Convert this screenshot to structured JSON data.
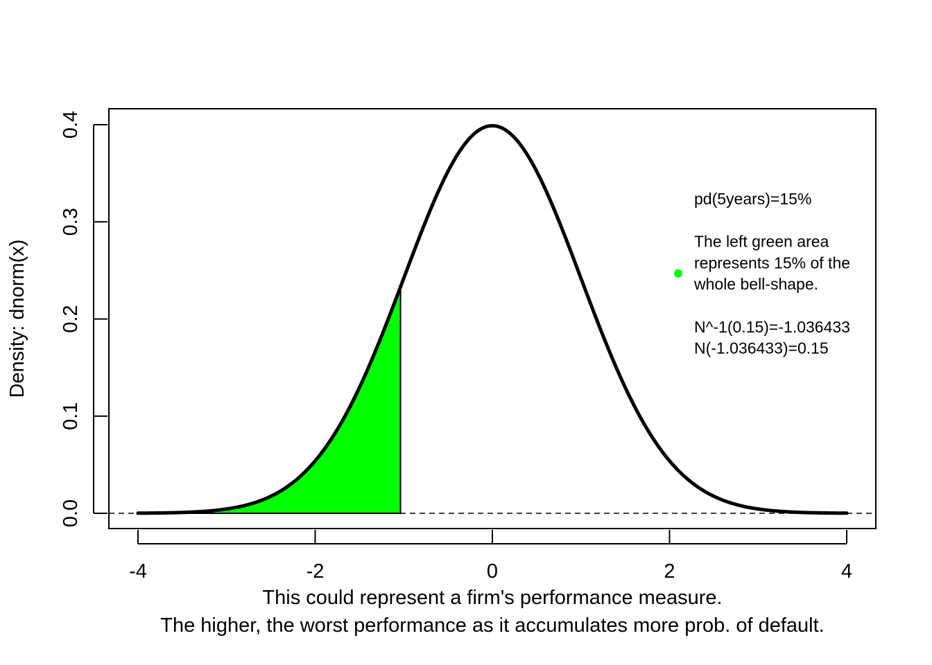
{
  "chart_data": {
    "type": "area",
    "title": "",
    "xlabel": [
      "This could represent a firm's performance measure.",
      "The higher, the worst performance as it accumulates more prob. of default."
    ],
    "ylabel": "Density: dnorm(x)",
    "xlim": [
      -4,
      4
    ],
    "ylim": [
      0,
      0.4
    ],
    "x_ticks": [
      -4,
      -2,
      0,
      2,
      4
    ],
    "x_tick_labels": [
      "-4",
      "-2",
      "0",
      "2",
      "4"
    ],
    "y_ticks": [
      0.0,
      0.1,
      0.2,
      0.3,
      0.4
    ],
    "y_tick_labels": [
      "0.0",
      "0.1",
      "0.2",
      "0.3",
      "0.4"
    ],
    "series": [
      {
        "kind": "density-curve",
        "function": "dnorm",
        "mean": 0,
        "sd": 1,
        "x_range": [
          -4,
          4
        ],
        "color": "#000000"
      },
      {
        "kind": "shaded-area",
        "x_range": [
          -4,
          -1.036433
        ],
        "color": "#00ff00"
      },
      {
        "kind": "reference-line",
        "y": 0,
        "style": "dashed",
        "color": "#000000"
      }
    ],
    "legend": {
      "position": "right",
      "marker_color": "#00ff00",
      "lines": [
        "pd(5years)=15%",
        "",
        "The left green area",
        "represents 15% of the",
        "whole bell-shape.",
        "",
        "N^-1(0.15)=-1.036433",
        "N(-1.036433)=0.15"
      ]
    },
    "grid": false
  }
}
